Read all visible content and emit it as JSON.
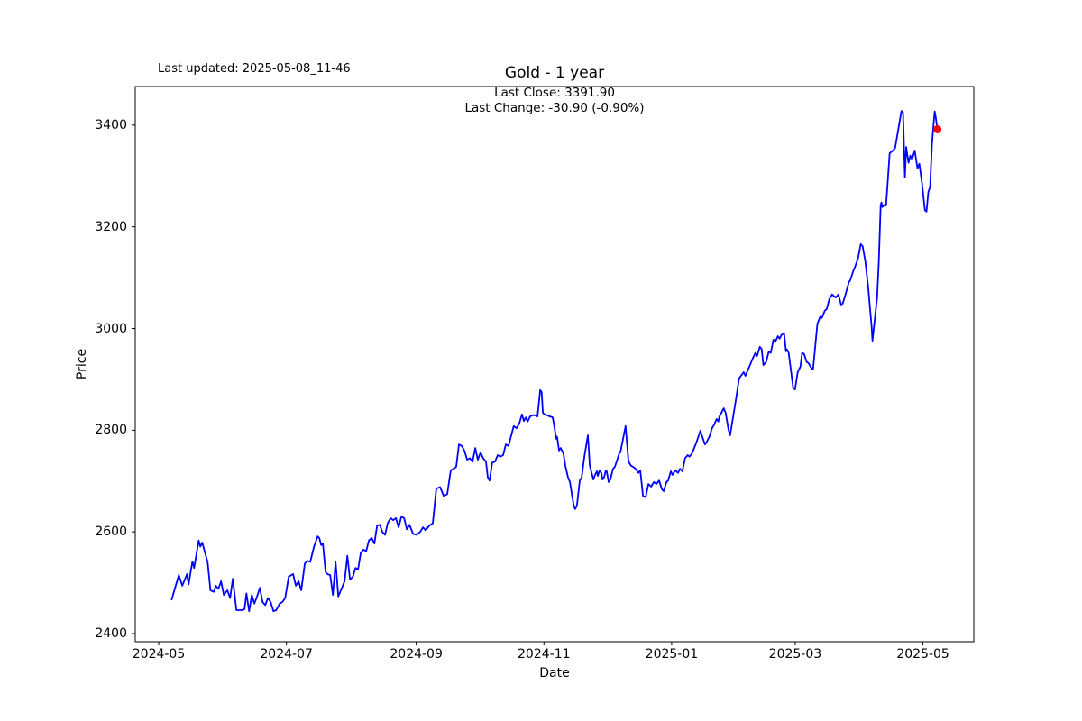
{
  "header": {
    "last_updated": "Last updated: 2025-05-08_11-46"
  },
  "chart_data": {
    "type": "line",
    "title": "Gold - 1 year",
    "xlabel": "Date",
    "ylabel": "Price",
    "annotation": {
      "last_close_text": "Last Close: 3391.90",
      "last_change_text": "Last Change: -30.90 (-0.90%)",
      "last_close": 3391.9,
      "last_change": -30.9,
      "last_change_pct": "-0.90%"
    },
    "legend": "none",
    "grid": false,
    "line_color": "#0000ff",
    "marker_color": "#ff0000",
    "axis_color": "#000000",
    "x_unit": "days since 2024-05-01",
    "x_range_dates": [
      "2024-05-07",
      "2025-05-08"
    ],
    "xlim": [
      -11.2,
      389.3
    ],
    "ylim": [
      2384,
      3476
    ],
    "x_ticks": [
      {
        "label": "2024-05",
        "d": 0
      },
      {
        "label": "2024-07",
        "d": 61
      },
      {
        "label": "2024-09",
        "d": 123
      },
      {
        "label": "2024-11",
        "d": 184
      },
      {
        "label": "2025-01",
        "d": 245
      },
      {
        "label": "2025-03",
        "d": 304
      },
      {
        "label": "2025-05",
        "d": 365
      }
    ],
    "y_ticks": [
      2400,
      2600,
      2800,
      3000,
      3200,
      3400
    ],
    "last_point": {
      "d": 371.9,
      "price": 3391.9
    },
    "series": [
      {
        "name": "Gold",
        "points": [
          [
            6.2,
            2467
          ],
          [
            9.6,
            2515
          ],
          [
            11.3,
            2494
          ],
          [
            13.5,
            2517
          ],
          [
            14.3,
            2497
          ],
          [
            16.1,
            2542
          ],
          [
            16.9,
            2529
          ],
          [
            19.1,
            2583
          ],
          [
            19.9,
            2571
          ],
          [
            20.8,
            2579
          ],
          [
            23.4,
            2540
          ],
          [
            24.7,
            2485
          ],
          [
            26.4,
            2482
          ],
          [
            27.2,
            2494
          ],
          [
            28.5,
            2488
          ],
          [
            29.8,
            2503
          ],
          [
            31.1,
            2476
          ],
          [
            32.8,
            2485
          ],
          [
            34.1,
            2470
          ],
          [
            35.4,
            2508
          ],
          [
            37.1,
            2446
          ],
          [
            39.7,
            2446
          ],
          [
            41.0,
            2448
          ],
          [
            41.9,
            2479
          ],
          [
            43.2,
            2444
          ],
          [
            44.5,
            2476
          ],
          [
            45.7,
            2459
          ],
          [
            47.0,
            2473
          ],
          [
            48.3,
            2490
          ],
          [
            49.6,
            2462
          ],
          [
            50.9,
            2456
          ],
          [
            52.2,
            2470
          ],
          [
            53.5,
            2462
          ],
          [
            54.8,
            2444
          ],
          [
            56.1,
            2446
          ],
          [
            57.8,
            2459
          ],
          [
            59.1,
            2462
          ],
          [
            60.4,
            2470
          ],
          [
            62.1,
            2512
          ],
          [
            64.2,
            2517
          ],
          [
            65.5,
            2494
          ],
          [
            66.8,
            2503
          ],
          [
            68.1,
            2485
          ],
          [
            69.8,
            2538
          ],
          [
            71.1,
            2543
          ],
          [
            72.4,
            2541
          ],
          [
            74.1,
            2570
          ],
          [
            75.9,
            2591
          ],
          [
            76.7,
            2588
          ],
          [
            77.6,
            2574
          ],
          [
            78.4,
            2577
          ],
          [
            79.7,
            2521
          ],
          [
            80.6,
            2517
          ],
          [
            81.9,
            2515
          ],
          [
            83.2,
            2476
          ],
          [
            84.5,
            2541
          ],
          [
            85.8,
            2473
          ],
          [
            87.5,
            2490
          ],
          [
            88.8,
            2503
          ],
          [
            90.1,
            2553
          ],
          [
            91.4,
            2506
          ],
          [
            92.7,
            2512
          ],
          [
            94.0,
            2529
          ],
          [
            95.2,
            2526
          ],
          [
            96.5,
            2559
          ],
          [
            97.8,
            2565
          ],
          [
            99.1,
            2562
          ],
          [
            100.4,
            2583
          ],
          [
            101.7,
            2588
          ],
          [
            103.0,
            2577
          ],
          [
            104.3,
            2612
          ],
          [
            105.6,
            2614
          ],
          [
            106.8,
            2600
          ],
          [
            108.1,
            2594
          ],
          [
            109.4,
            2617
          ],
          [
            110.7,
            2627
          ],
          [
            112.0,
            2623
          ],
          [
            113.3,
            2627
          ],
          [
            114.6,
            2609
          ],
          [
            115.9,
            2630
          ],
          [
            117.2,
            2627
          ],
          [
            118.5,
            2605
          ],
          [
            119.8,
            2614
          ],
          [
            121.5,
            2596
          ],
          [
            123.2,
            2594
          ],
          [
            124.9,
            2600
          ],
          [
            126.2,
            2609
          ],
          [
            127.5,
            2603
          ],
          [
            129.2,
            2612
          ],
          [
            130.9,
            2617
          ],
          [
            132.6,
            2685
          ],
          [
            134.4,
            2688
          ],
          [
            136.1,
            2671
          ],
          [
            137.8,
            2674
          ],
          [
            139.5,
            2721
          ],
          [
            140.8,
            2724
          ],
          [
            142.1,
            2728
          ],
          [
            143.4,
            2772
          ],
          [
            144.7,
            2769
          ],
          [
            146.0,
            2760
          ],
          [
            147.3,
            2742
          ],
          [
            148.6,
            2745
          ],
          [
            149.9,
            2738
          ],
          [
            151.2,
            2765
          ],
          [
            152.4,
            2742
          ],
          [
            153.7,
            2756
          ],
          [
            155.0,
            2745
          ],
          [
            156.3,
            2738
          ],
          [
            157.2,
            2707
          ],
          [
            158.0,
            2701
          ],
          [
            159.3,
            2736
          ],
          [
            160.6,
            2738
          ],
          [
            161.9,
            2751
          ],
          [
            163.2,
            2748
          ],
          [
            164.5,
            2751
          ],
          [
            165.8,
            2772
          ],
          [
            167.1,
            2769
          ],
          [
            168.4,
            2790
          ],
          [
            169.6,
            2808
          ],
          [
            170.9,
            2804
          ],
          [
            172.2,
            2813
          ],
          [
            173.5,
            2831
          ],
          [
            174.4,
            2818
          ],
          [
            175.3,
            2825
          ],
          [
            176.2,
            2817
          ],
          [
            177.4,
            2827
          ],
          [
            179.2,
            2830
          ],
          [
            180.9,
            2827
          ],
          [
            182.2,
            2879
          ],
          [
            182.9,
            2875
          ],
          [
            183.5,
            2834
          ],
          [
            184.3,
            2831
          ],
          [
            185.6,
            2829
          ],
          [
            186.9,
            2827
          ],
          [
            188.2,
            2825
          ],
          [
            189.9,
            2783
          ],
          [
            190.3,
            2787
          ],
          [
            191.2,
            2760
          ],
          [
            192.0,
            2765
          ],
          [
            193.3,
            2754
          ],
          [
            194.2,
            2730
          ],
          [
            195.5,
            2707
          ],
          [
            196.4,
            2698
          ],
          [
            197.6,
            2666
          ],
          [
            198.5,
            2648
          ],
          [
            199.0,
            2645
          ],
          [
            199.8,
            2654
          ],
          [
            201.1,
            2701
          ],
          [
            202.0,
            2707
          ],
          [
            203.3,
            2748
          ],
          [
            205.0,
            2790
          ],
          [
            205.9,
            2730
          ],
          [
            207.6,
            2703
          ],
          [
            208.4,
            2712
          ],
          [
            209.3,
            2719
          ],
          [
            209.7,
            2710
          ],
          [
            210.6,
            2721
          ],
          [
            211.4,
            2716
          ],
          [
            211.9,
            2703
          ],
          [
            212.7,
            2707
          ],
          [
            213.6,
            2721
          ],
          [
            214.0,
            2719
          ],
          [
            214.9,
            2698
          ],
          [
            215.7,
            2703
          ],
          [
            217.0,
            2724
          ],
          [
            217.9,
            2728
          ],
          [
            218.3,
            2733
          ],
          [
            220.0,
            2755
          ],
          [
            220.5,
            2756
          ],
          [
            223.0,
            2808
          ],
          [
            224.3,
            2742
          ],
          [
            224.7,
            2736
          ],
          [
            225.6,
            2730
          ],
          [
            226.5,
            2728
          ],
          [
            227.8,
            2724
          ],
          [
            229.1,
            2716
          ],
          [
            230.0,
            2721
          ],
          [
            231.3,
            2671
          ],
          [
            232.6,
            2668
          ],
          [
            233.9,
            2694
          ],
          [
            235.2,
            2689
          ],
          [
            236.5,
            2698
          ],
          [
            237.7,
            2694
          ],
          [
            239.0,
            2701
          ],
          [
            240.3,
            2684
          ],
          [
            241.2,
            2680
          ],
          [
            242.5,
            2698
          ],
          [
            243.3,
            2701
          ],
          [
            244.6,
            2719
          ],
          [
            245.4,
            2712
          ],
          [
            246.7,
            2721
          ],
          [
            248.0,
            2716
          ],
          [
            249.0,
            2724
          ],
          [
            250.1,
            2719
          ],
          [
            251.4,
            2745
          ],
          [
            252.7,
            2751
          ],
          [
            253.5,
            2748
          ],
          [
            254.8,
            2755
          ],
          [
            256.6,
            2774
          ],
          [
            257.0,
            2778
          ],
          [
            258.7,
            2799
          ],
          [
            260.9,
            2772
          ],
          [
            261.3,
            2774
          ],
          [
            263.0,
            2787
          ],
          [
            264.3,
            2804
          ],
          [
            265.2,
            2810
          ],
          [
            266.5,
            2822
          ],
          [
            267.3,
            2817
          ],
          [
            267.8,
            2827
          ],
          [
            269.9,
            2843
          ],
          [
            270.8,
            2834
          ],
          [
            272.1,
            2801
          ],
          [
            272.9,
            2790
          ],
          [
            274.2,
            2822
          ],
          [
            275.9,
            2866
          ],
          [
            277.2,
            2902
          ],
          [
            279.4,
            2914
          ],
          [
            280.2,
            2907
          ],
          [
            282.4,
            2928
          ],
          [
            283.7,
            2941
          ],
          [
            285.0,
            2952
          ],
          [
            285.8,
            2946
          ],
          [
            287.1,
            2964
          ],
          [
            288.0,
            2959
          ],
          [
            288.8,
            2928
          ],
          [
            290.1,
            2934
          ],
          [
            291.4,
            2955
          ],
          [
            292.3,
            2952
          ],
          [
            293.6,
            2978
          ],
          [
            294.4,
            2973
          ],
          [
            295.7,
            2985
          ],
          [
            296.6,
            2980
          ],
          [
            297.4,
            2987
          ],
          [
            298.7,
            2991
          ],
          [
            299.6,
            2955
          ],
          [
            300.0,
            2959
          ],
          [
            300.9,
            2952
          ],
          [
            303.0,
            2884
          ],
          [
            303.9,
            2880
          ],
          [
            305.2,
            2914
          ],
          [
            306.5,
            2925
          ],
          [
            307.3,
            2952
          ],
          [
            308.2,
            2950
          ],
          [
            309.5,
            2934
          ],
          [
            310.3,
            2932
          ],
          [
            311.6,
            2923
          ],
          [
            312.5,
            2919
          ],
          [
            314.6,
            3009
          ],
          [
            315.9,
            3023
          ],
          [
            316.8,
            3021
          ],
          [
            318.1,
            3035
          ],
          [
            319.0,
            3038
          ],
          [
            320.3,
            3058
          ],
          [
            321.6,
            3067
          ],
          [
            323.3,
            3061
          ],
          [
            324.6,
            3067
          ],
          [
            325.9,
            3047
          ],
          [
            326.7,
            3049
          ],
          [
            328.0,
            3067
          ],
          [
            329.7,
            3092
          ],
          [
            330.2,
            3094
          ],
          [
            331.9,
            3115
          ],
          [
            332.3,
            3118
          ],
          [
            334.0,
            3138
          ],
          [
            335.3,
            3166
          ],
          [
            336.2,
            3162
          ],
          [
            337.5,
            3132
          ],
          [
            338.8,
            3084
          ],
          [
            340.5,
            3003
          ],
          [
            340.9,
            2976
          ],
          [
            343.1,
            3060
          ],
          [
            343.9,
            3130
          ],
          [
            344.8,
            3242
          ],
          [
            345.2,
            3248
          ],
          [
            345.6,
            3239
          ],
          [
            346.9,
            3244
          ],
          [
            347.4,
            3242
          ],
          [
            349.1,
            3345
          ],
          [
            350.4,
            3349
          ],
          [
            351.7,
            3355
          ],
          [
            353.4,
            3395
          ],
          [
            354.7,
            3428
          ],
          [
            355.5,
            3425
          ],
          [
            356.4,
            3297
          ],
          [
            357.0,
            3357
          ],
          [
            358.1,
            3326
          ],
          [
            359.0,
            3340
          ],
          [
            359.8,
            3333
          ],
          [
            361.1,
            3350
          ],
          [
            362.4,
            3315
          ],
          [
            363.3,
            3324
          ],
          [
            364.6,
            3285
          ],
          [
            365.9,
            3233
          ],
          [
            366.7,
            3230
          ],
          [
            367.6,
            3269
          ],
          [
            368.4,
            3278
          ],
          [
            369.3,
            3363
          ],
          [
            370.2,
            3407
          ],
          [
            370.6,
            3427
          ],
          [
            371.0,
            3419
          ],
          [
            371.9,
            3391.9
          ]
        ]
      }
    ]
  }
}
